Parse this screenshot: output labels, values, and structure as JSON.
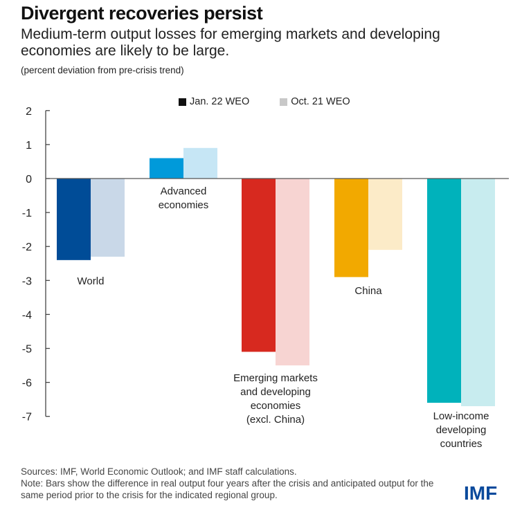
{
  "header": {
    "title": "Divergent recoveries persist",
    "subtitle": "Medium-term output losses for emerging markets and developing economies are likely to be large.",
    "units": "(percent deviation from pre-crisis trend)"
  },
  "legend": [
    {
      "label": "Jan. 22 WEO",
      "color": "#111111"
    },
    {
      "label": "Oct. 21 WEO",
      "color": "#c8c8c8"
    }
  ],
  "chart_data": {
    "type": "bar",
    "title": "Divergent recoveries persist",
    "subtitle": "Medium-term output losses for emerging markets and developing economies are likely to be large.",
    "ylabel": "(percent deviation from pre-crisis trend)",
    "xlabel": "",
    "ylim": [
      -7,
      2
    ],
    "yticks": [
      2,
      1,
      0,
      -1,
      -2,
      -3,
      -4,
      -5,
      -6,
      -7
    ],
    "grid": false,
    "legend_position": "top-center",
    "categories": [
      "World",
      "Advanced economies",
      "Emerging markets and developing economies (excl. China)",
      "China",
      "Low-income developing countries"
    ],
    "category_label_lines": [
      [
        "World"
      ],
      [
        "Advanced",
        "economies"
      ],
      [
        "Emerging markets",
        "and developing",
        "economies",
        "(excl. China)"
      ],
      [
        "China"
      ],
      [
        "Low-income",
        "developing",
        "countries"
      ]
    ],
    "series": [
      {
        "name": "Jan. 22 WEO",
        "values": [
          -2.4,
          0.6,
          -5.1,
          -2.9,
          -6.6
        ]
      },
      {
        "name": "Oct. 21 WEO",
        "values": [
          -2.3,
          0.9,
          -5.5,
          -2.1,
          -6.7
        ]
      }
    ],
    "colors": {
      "jan": [
        "#004c97",
        "#009ada",
        "#d7291f",
        "#f2a900",
        "#00b2bb"
      ],
      "oct": [
        "#c9d8e8",
        "#c6e6f5",
        "#f7d4d2",
        "#fcebc8",
        "#c8ecef"
      ]
    }
  },
  "footer": {
    "sources": "Sources: IMF, World Economic Outlook; and IMF staff calculations.",
    "note": "Note: Bars show the difference in real output four years after the crisis and anticipated output for the same period prior to the crisis for the indicated regional group."
  },
  "brand": {
    "logo_text": "IMF",
    "color": "#0a4a9c"
  }
}
